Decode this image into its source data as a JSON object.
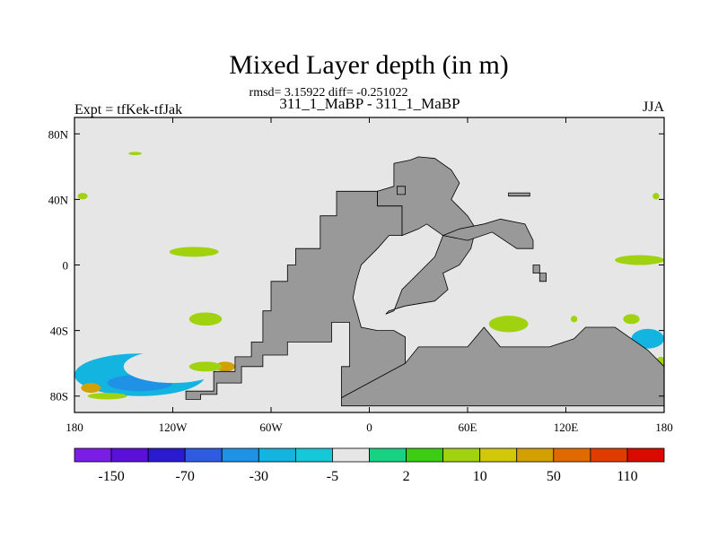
{
  "chart_data": {
    "type": "heatmap",
    "title": "Mixed Layer depth (in m)",
    "stats_line": "rmsd= 3.15922 diff= -0.251022",
    "subtitle": "311_1_MaBP - 311_1_MaBP",
    "left_label": "Expt = tfKek-tfJak",
    "right_label": "JJA",
    "x_ticks": [
      {
        "value": -180,
        "label": "180"
      },
      {
        "value": -120,
        "label": "120W"
      },
      {
        "value": -60,
        "label": "60W"
      },
      {
        "value": 0,
        "label": "0"
      },
      {
        "value": 60,
        "label": "60E"
      },
      {
        "value": 120,
        "label": "120E"
      },
      {
        "value": 180,
        "label": "180"
      }
    ],
    "y_ticks": [
      {
        "value": 80,
        "label": "80N"
      },
      {
        "value": 40,
        "label": "40N"
      },
      {
        "value": 0,
        "label": "0"
      },
      {
        "value": -40,
        "label": "40S"
      },
      {
        "value": -80,
        "label": "80S"
      }
    ],
    "xlim": [
      -180,
      180
    ],
    "ylim": [
      -90,
      90
    ],
    "colors": {
      "ocean_background": "#e6e6e6",
      "land": "#999999"
    },
    "colorbar": {
      "colors": [
        "#7a1ee6",
        "#5a10d9",
        "#2a1bd0",
        "#2f5be0",
        "#1f92e6",
        "#14b4e0",
        "#14c8d8",
        "#e6e6e6",
        "#17d282",
        "#3ccc14",
        "#a0d20f",
        "#d2c80a",
        "#d2a000",
        "#e06a00",
        "#e03c00",
        "#d90a00"
      ],
      "labels": [
        "-150",
        "-70",
        "-30",
        "-5",
        "2",
        "10",
        "50",
        "110"
      ]
    },
    "land_regions": [
      {
        "name": "americas",
        "points": [
          [
            -17,
            -81
          ],
          [
            -17,
            -62
          ],
          [
            -12,
            -62
          ],
          [
            -12,
            -35
          ],
          [
            -23,
            -35
          ],
          [
            -23,
            -47
          ],
          [
            -50,
            -47
          ],
          [
            -50,
            -55
          ],
          [
            -65,
            -55
          ],
          [
            -65,
            -62
          ],
          [
            -78,
            -62
          ],
          [
            -78,
            -72
          ],
          [
            -93,
            -72
          ],
          [
            -93,
            -79
          ],
          [
            -103,
            -79
          ],
          [
            -103,
            -82
          ],
          [
            -112,
            -82
          ],
          [
            -112,
            -77
          ],
          [
            -95,
            -77
          ],
          [
            -95,
            -65
          ],
          [
            -82,
            -65
          ],
          [
            -82,
            -56
          ],
          [
            -72,
            -56
          ],
          [
            -72,
            -47
          ],
          [
            -65,
            -47
          ],
          [
            -65,
            -28
          ],
          [
            -60,
            -28
          ],
          [
            -60,
            -10
          ],
          [
            -50,
            -10
          ],
          [
            -50,
            0
          ],
          [
            -45,
            0
          ],
          [
            -45,
            10
          ],
          [
            -30,
            10
          ],
          [
            -30,
            30
          ],
          [
            -20,
            30
          ],
          [
            -20,
            45
          ],
          [
            5,
            45
          ],
          [
            5,
            36
          ],
          [
            20,
            36
          ],
          [
            20,
            18
          ],
          [
            12,
            18
          ],
          [
            5,
            10
          ],
          [
            -5,
            0
          ],
          [
            -8,
            -10
          ],
          [
            -10,
            -20
          ],
          [
            -5,
            -38
          ],
          [
            5,
            -40
          ],
          [
            15,
            -40
          ],
          [
            22,
            -44
          ],
          [
            22,
            -60
          ],
          [
            -17,
            -81
          ]
        ]
      },
      {
        "name": "southern_landmass",
        "points": [
          [
            -17,
            -81
          ],
          [
            22,
            -60
          ],
          [
            30,
            -50
          ],
          [
            60,
            -50
          ],
          [
            70,
            -38
          ],
          [
            80,
            -50
          ],
          [
            110,
            -50
          ],
          [
            125,
            -45
          ],
          [
            132,
            -38
          ],
          [
            150,
            -38
          ],
          [
            160,
            -45
          ],
          [
            170,
            -52
          ],
          [
            178,
            -60
          ],
          [
            180,
            -62
          ],
          [
            180,
            -86
          ],
          [
            -17,
            -86
          ],
          [
            -17,
            -81
          ]
        ]
      },
      {
        "name": "eurasia",
        "points": [
          [
            5,
            45
          ],
          [
            15,
            48
          ],
          [
            15,
            62
          ],
          [
            25,
            64
          ],
          [
            30,
            66
          ],
          [
            40,
            65
          ],
          [
            50,
            58
          ],
          [
            55,
            50
          ],
          [
            50,
            40
          ],
          [
            60,
            30
          ],
          [
            65,
            22
          ],
          [
            62,
            10
          ],
          [
            55,
            0
          ],
          [
            45,
            -5
          ],
          [
            48,
            -15
          ],
          [
            40,
            -22
          ],
          [
            22,
            -25
          ],
          [
            12,
            -28
          ],
          [
            10,
            -30
          ],
          [
            15,
            -28
          ],
          [
            20,
            -15
          ],
          [
            30,
            -5
          ],
          [
            40,
            5
          ],
          [
            45,
            18
          ],
          [
            35,
            25
          ],
          [
            30,
            22
          ],
          [
            20,
            18
          ],
          [
            20,
            36
          ],
          [
            5,
            36
          ],
          [
            5,
            45
          ]
        ]
      },
      {
        "name": "asia_strip",
        "points": [
          [
            45,
            18
          ],
          [
            60,
            15
          ],
          [
            75,
            20
          ],
          [
            90,
            10
          ],
          [
            100,
            10
          ],
          [
            100,
            15
          ],
          [
            95,
            25
          ],
          [
            80,
            28
          ],
          [
            70,
            25
          ],
          [
            55,
            22
          ],
          [
            45,
            18
          ]
        ]
      },
      {
        "name": "small_island",
        "points": [
          [
            17,
            48
          ],
          [
            22,
            48
          ],
          [
            22,
            43
          ],
          [
            17,
            43
          ],
          [
            17,
            48
          ]
        ]
      },
      {
        "name": "arctic_strip",
        "points": [
          [
            85,
            42
          ],
          [
            98,
            42
          ],
          [
            98,
            44
          ],
          [
            85,
            44
          ],
          [
            85,
            42
          ]
        ]
      },
      {
        "name": "east_islands",
        "points": [
          [
            100,
            0
          ],
          [
            104,
            0
          ],
          [
            104,
            -10
          ],
          [
            108,
            -10
          ],
          [
            108,
            -5
          ],
          [
            100,
            -5
          ],
          [
            100,
            0
          ]
        ]
      }
    ],
    "anomaly_patches": [
      {
        "x": -140,
        "y": -67,
        "rx": 40,
        "ry": 13,
        "value": -20
      },
      {
        "x": -140,
        "y": -72,
        "rx": 20,
        "ry": 5,
        "value": -50
      },
      {
        "x": -120,
        "y": -62,
        "rx": 30,
        "ry": 10,
        "value": -3
      },
      {
        "x": -160,
        "y": -80,
        "rx": 12,
        "ry": 2,
        "value": 8
      },
      {
        "x": -170,
        "y": -75,
        "rx": 6,
        "ry": 3,
        "value": 40
      },
      {
        "x": -90,
        "y": -70,
        "rx": 10,
        "ry": 4,
        "value": -3
      },
      {
        "x": -88,
        "y": -62,
        "rx": 6,
        "ry": 3,
        "value": 40
      },
      {
        "x": -100,
        "y": -62,
        "rx": 10,
        "ry": 3,
        "value": 8
      },
      {
        "x": -70,
        "y": -55,
        "rx": 5,
        "ry": 3,
        "value": -3
      },
      {
        "x": -150,
        "y": 6,
        "rx": 16,
        "ry": 4,
        "value": -3
      },
      {
        "x": -107,
        "y": 8,
        "rx": 15,
        "ry": 3,
        "value": 8
      },
      {
        "x": -140,
        "y": -33,
        "rx": 6,
        "ry": 3,
        "value": -3
      },
      {
        "x": -175,
        "y": 42,
        "rx": 3,
        "ry": 2,
        "value": 8
      },
      {
        "x": -143,
        "y": 68,
        "rx": 4,
        "ry": 1,
        "value": 8
      },
      {
        "x": -120,
        "y": -28,
        "rx": 3,
        "ry": 2,
        "value": -3
      },
      {
        "x": -100,
        "y": -33,
        "rx": 10,
        "ry": 4,
        "value": 8
      },
      {
        "x": 50,
        "y": -27,
        "rx": 15,
        "ry": 4,
        "value": -3
      },
      {
        "x": 85,
        "y": -36,
        "rx": 12,
        "ry": 5,
        "value": 8
      },
      {
        "x": 70,
        "y": -47,
        "rx": 6,
        "ry": 4,
        "value": 8
      },
      {
        "x": 70,
        "y": -48,
        "rx": 2,
        "ry": 2,
        "value": 40
      },
      {
        "x": 105,
        "y": -18,
        "rx": 6,
        "ry": 3,
        "value": -3
      },
      {
        "x": 165,
        "y": 3,
        "rx": 15,
        "ry": 3,
        "value": 8
      },
      {
        "x": 162,
        "y": 10,
        "rx": 5,
        "ry": 2,
        "value": -3
      },
      {
        "x": 170,
        "y": -45,
        "rx": 10,
        "ry": 6,
        "value": -20
      },
      {
        "x": 160,
        "y": -33,
        "rx": 5,
        "ry": 3,
        "value": 8
      },
      {
        "x": 178,
        "y": -62,
        "rx": 4,
        "ry": 6,
        "value": 8
      },
      {
        "x": 178,
        "y": -70,
        "rx": 2,
        "ry": 2,
        "value": 40
      },
      {
        "x": 178,
        "y": -75,
        "rx": 2,
        "ry": 3,
        "value": -3
      },
      {
        "x": 45,
        "y": -40,
        "rx": 4,
        "ry": 3,
        "value": -3
      },
      {
        "x": 30,
        "y": -30,
        "rx": 2,
        "ry": 2,
        "value": -3
      },
      {
        "x": 175,
        "y": 42,
        "rx": 2,
        "ry": 2,
        "value": 8
      },
      {
        "x": 125,
        "y": -33,
        "rx": 2,
        "ry": 2,
        "value": 8
      }
    ]
  }
}
